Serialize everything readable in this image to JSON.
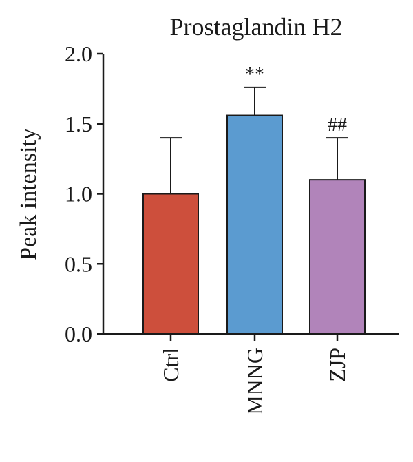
{
  "chart_data": {
    "type": "bar",
    "title": "Prostaglandin H2",
    "xlabel": "",
    "ylabel": "Peak intensity",
    "ylim": [
      0,
      2.0
    ],
    "yticks": [
      0.0,
      0.5,
      1.0,
      1.5,
      2.0
    ],
    "ytick_labels": [
      "0.0",
      "0.5",
      "1.0",
      "1.5",
      "2.0"
    ],
    "categories": [
      "Ctrl",
      "MNNG",
      "ZJP"
    ],
    "values": [
      1.0,
      1.56,
      1.1
    ],
    "errors": [
      0.4,
      0.2,
      0.3
    ],
    "colors": [
      "#CD4F3C",
      "#5B9BD0",
      "#B184BA"
    ],
    "annotations": [
      "",
      "**",
      "##"
    ],
    "grid": false,
    "legend": "none"
  }
}
